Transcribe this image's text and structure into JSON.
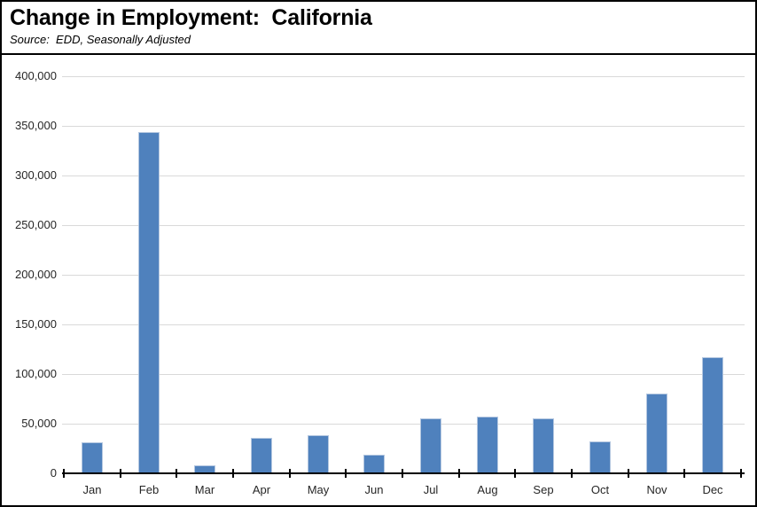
{
  "header": {
    "title": "Change in Employment:  California",
    "source": "Source:  EDD, Seasonally Adjusted"
  },
  "chart_data": {
    "type": "bar",
    "title": "Change in Employment:  California",
    "subtitle": "Source:  EDD, Seasonally Adjusted",
    "categories": [
      "Jan",
      "Feb",
      "Mar",
      "Apr",
      "May",
      "Jun",
      "Jul",
      "Aug",
      "Sep",
      "Oct",
      "Nov",
      "Dec"
    ],
    "values": [
      31000,
      344000,
      8000,
      36000,
      38000,
      19000,
      55000,
      57000,
      55000,
      32000,
      80000,
      117000
    ],
    "xlabel": "",
    "ylabel": "",
    "ylim": [
      0,
      400000
    ],
    "ytick_interval": 50000,
    "ytick_labels": [
      "0",
      "50,000",
      "100,000",
      "150,000",
      "200,000",
      "250,000",
      "300,000",
      "350,000",
      "400,000"
    ],
    "grid": true,
    "legend": false,
    "colors": {
      "bar_fill": "#4f81bd",
      "bar_border": "#b4c7e0",
      "gridline": "#d9d9d9",
      "axis": "#000000",
      "text": "#262626"
    }
  }
}
